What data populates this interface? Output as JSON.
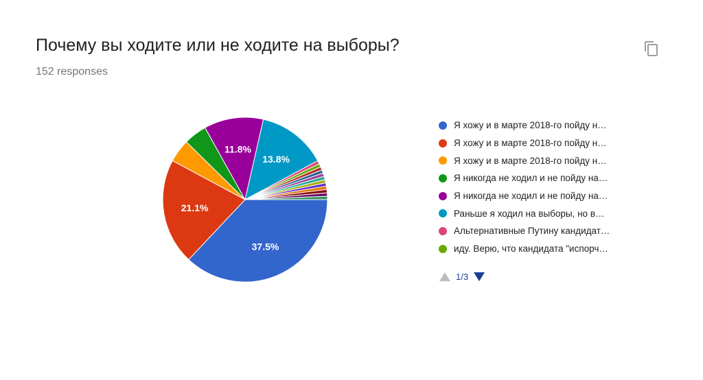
{
  "header": {
    "title": "Почему вы ходите или не ходите на выборы?",
    "responses": "152 responses"
  },
  "icons": {
    "copy": "copy-icon"
  },
  "chart_data": {
    "type": "pie",
    "slices": [
      {
        "label": "Я хожу и в марте 2018-го пойду н…",
        "value": 37.5,
        "color": "#3366cc",
        "shown": "37.5%"
      },
      {
        "label": "Я хожу и в марте 2018-го пойду н…",
        "value": 21.1,
        "color": "#dc3912",
        "shown": "21.1%"
      },
      {
        "label": "Я хожу и в марте 2018-го пойду н…",
        "value": 4.6,
        "color": "#ff9900",
        "shown": ""
      },
      {
        "label": "Я никогда не ходил и не пойду на…",
        "value": 4.6,
        "color": "#109618",
        "shown": ""
      },
      {
        "label": "Я никогда не ходил и не пойду на…",
        "value": 11.8,
        "color": "#990099",
        "shown": "11.8%"
      },
      {
        "label": "Раньше я ходил на выборы, но в…",
        "value": 13.8,
        "color": "#0099c6",
        "shown": "13.8%"
      },
      {
        "label": "Альтернативные Путину кандидат…",
        "value": 0.66,
        "color": "#dd4477",
        "shown": ""
      },
      {
        "label": "иду. Верю, что кандидата \"испорч…",
        "value": 0.66,
        "color": "#66aa00",
        "shown": ""
      },
      {
        "label": "",
        "value": 0.66,
        "color": "#b82e2e",
        "shown": ""
      },
      {
        "label": "",
        "value": 0.66,
        "color": "#316395",
        "shown": ""
      },
      {
        "label": "",
        "value": 0.66,
        "color": "#994499",
        "shown": ""
      },
      {
        "label": "",
        "value": 0.66,
        "color": "#22aa99",
        "shown": ""
      },
      {
        "label": "",
        "value": 0.66,
        "color": "#aaaa11",
        "shown": ""
      },
      {
        "label": "",
        "value": 0.66,
        "color": "#6633cc",
        "shown": ""
      },
      {
        "label": "",
        "value": 0.66,
        "color": "#e67300",
        "shown": ""
      },
      {
        "label": "",
        "value": 0.66,
        "color": "#8b0707",
        "shown": ""
      },
      {
        "label": "",
        "value": 0.66,
        "color": "#651067",
        "shown": ""
      },
      {
        "label": "",
        "value": 0.66,
        "color": "#329262",
        "shown": ""
      }
    ],
    "legend_count": 8,
    "legend_placement": "right"
  },
  "pager": {
    "text": "1/3"
  }
}
